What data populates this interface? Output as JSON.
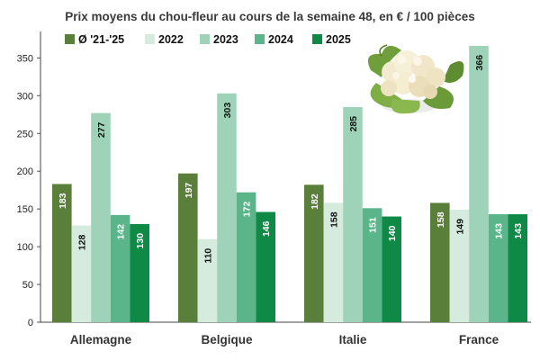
{
  "chart_data": {
    "type": "bar",
    "title": "Prix moyens du chou-fleur au cours de la semaine 48, en € / 100 pièces",
    "categories": [
      "Allemagne",
      "Belgique",
      "Italie",
      "France"
    ],
    "series": [
      {
        "name": "Ø '21-'25",
        "values": [
          183,
          197,
          182,
          158
        ],
        "color": "#5a7f3a",
        "label_color": "#ffffff"
      },
      {
        "name": "2022",
        "values": [
          128,
          110,
          158,
          149
        ],
        "color": "#d4ebdd",
        "label_color": "#111111"
      },
      {
        "name": "2023",
        "values": [
          277,
          303,
          285,
          366
        ],
        "color": "#9fd3b9",
        "label_color": "#111111"
      },
      {
        "name": "2024",
        "values": [
          142,
          172,
          151,
          143
        ],
        "color": "#5ab58a",
        "label_color": "#ffffff"
      },
      {
        "name": "2025",
        "values": [
          130,
          146,
          140,
          143
        ],
        "color": "#0e8a46",
        "label_color": "#ffffff"
      }
    ],
    "y_ticks": [
      0,
      50,
      100,
      150,
      200,
      250,
      300,
      350
    ],
    "ylim": [
      0,
      385
    ],
    "grid": false,
    "legend_position": "top-left"
  }
}
